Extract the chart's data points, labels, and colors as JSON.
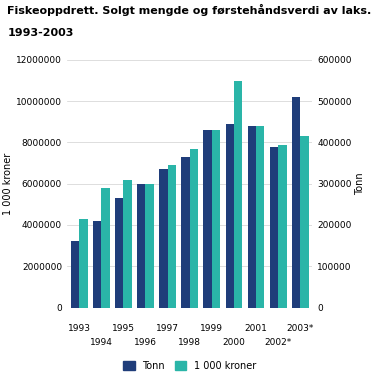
{
  "title1": "Fiskeoppdrett. Solgt mengde og førstehåndsverdi av laks.",
  "title2": "1993-2003",
  "years": [
    "1993",
    "1994",
    "1995",
    "1996",
    "1997",
    "1998",
    "1999",
    "2000",
    "2001",
    "2002*",
    "2003*"
  ],
  "tonn": [
    160000,
    210000,
    265000,
    300000,
    335000,
    365000,
    430000,
    445000,
    440000,
    390000,
    510000
  ],
  "kroner": [
    4300000,
    5800000,
    6200000,
    6000000,
    6900000,
    7700000,
    8600000,
    11000000,
    8800000,
    7900000,
    8300000
  ],
  "left_ylim": [
    0,
    12000000
  ],
  "right_ylim": [
    0,
    600000
  ],
  "left_yticks": [
    0,
    2000000,
    4000000,
    6000000,
    8000000,
    10000000,
    12000000
  ],
  "right_yticks": [
    0,
    100000,
    200000,
    300000,
    400000,
    500000,
    600000
  ],
  "left_ylabel": "1 000 kroner",
  "right_ylabel": "Tonn",
  "bar_color_tonn": "#1f3d7a",
  "bar_color_kroner": "#2ab5a8",
  "legend_labels": [
    "Tonn",
    "1 000 kroner"
  ],
  "background_color": "#ffffff"
}
